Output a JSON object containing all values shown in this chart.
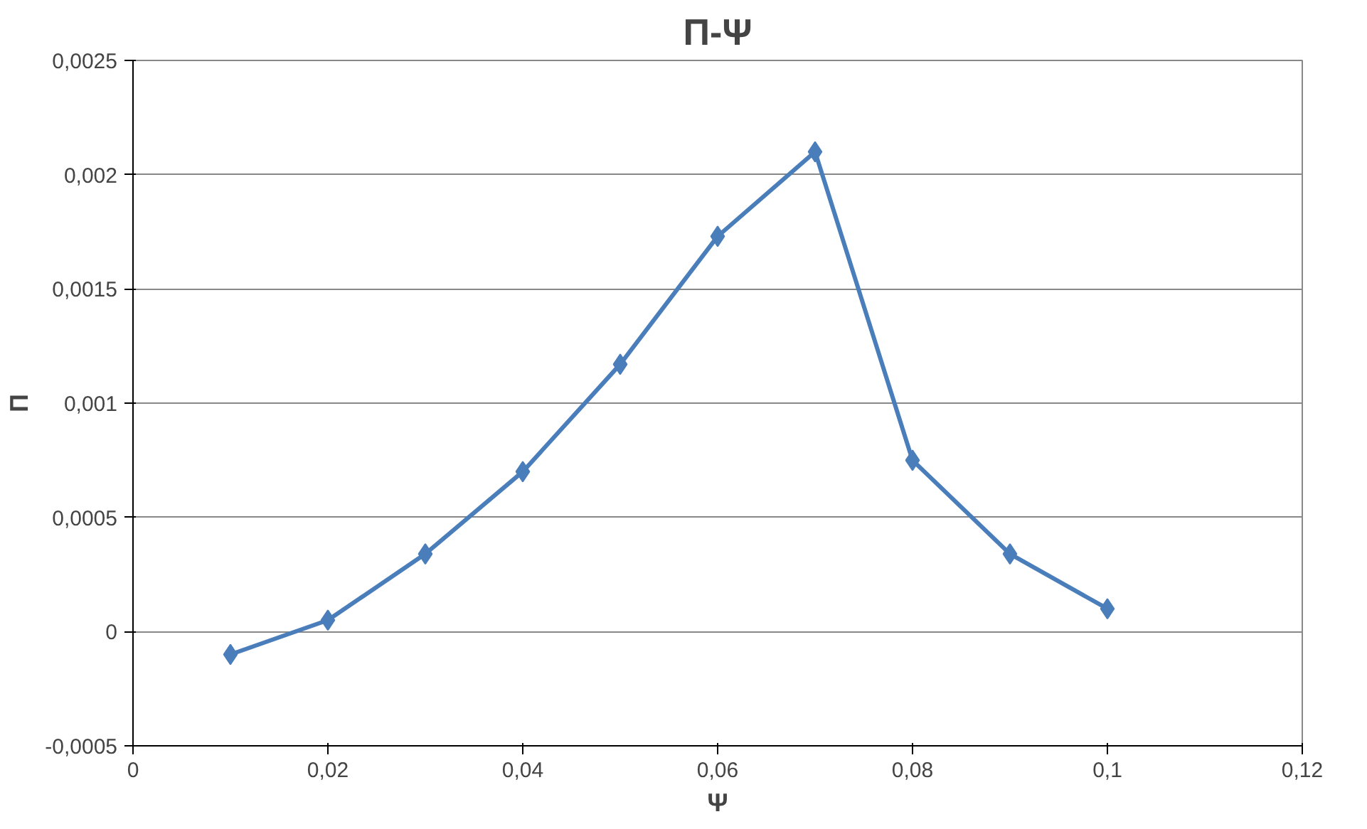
{
  "chart_data": {
    "type": "line",
    "title": "Π-Ψ",
    "xlabel": "Ψ",
    "ylabel": "Π",
    "x": [
      0.01,
      0.02,
      0.03,
      0.04,
      0.05,
      0.06,
      0.07,
      0.08,
      0.09,
      0.1
    ],
    "series": [
      {
        "color": "#4a7ebb",
        "values": [
          -0.0001,
          5e-05,
          0.00034,
          0.0007,
          0.00117,
          0.00173,
          0.0021,
          0.00075,
          0.00034,
          0.0001
        ]
      }
    ],
    "xlim": [
      0,
      0.12
    ],
    "ylim": [
      -0.0005,
      0.0025
    ],
    "xticks": [
      0,
      {
        "value": 0.02,
        "label": "0,02"
      },
      {
        "value": 0.04,
        "label": "0,04"
      },
      {
        "value": 0.06,
        "label": "0,06"
      },
      {
        "value": 0.08,
        "label": "0,08"
      },
      {
        "value": 0.1,
        "label": "0,1"
      },
      {
        "value": 0.12,
        "label": "0,12"
      }
    ],
    "yticks": [
      {
        "value": -0.0005,
        "label": "-0,0005"
      },
      0,
      {
        "value": 0.0005,
        "label": "0,0005"
      },
      {
        "value": 0.001,
        "label": "0,001"
      },
      {
        "value": 0.0015,
        "label": "0,0015"
      },
      {
        "value": 0.002,
        "label": "0,002"
      },
      {
        "value": 0.0025,
        "label": "0,0025"
      }
    ],
    "grid": "y",
    "marker": "diamond",
    "line_style": "solid"
  }
}
